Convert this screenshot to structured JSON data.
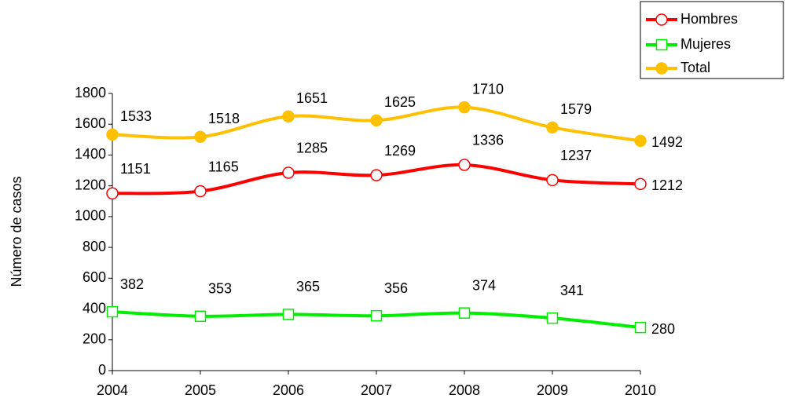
{
  "chart_data": {
    "type": "line",
    "y_label": "Número de casos",
    "categories": [
      "2004",
      "2005",
      "2006",
      "2007",
      "2008",
      "2009",
      "2010"
    ],
    "series": [
      {
        "name": "Hombres",
        "color": "#ff0000",
        "marker": "open-circle",
        "values": [
          1151,
          1165,
          1285,
          1269,
          1336,
          1237,
          1212
        ]
      },
      {
        "name": "Mujeres",
        "color": "#00ee00",
        "marker": "open-square",
        "values": [
          382,
          353,
          365,
          356,
          374,
          341,
          280
        ]
      },
      {
        "name": "Total",
        "color": "#ffc000",
        "marker": "filled-circle",
        "values": [
          1533,
          1518,
          1651,
          1625,
          1710,
          1579,
          1492
        ]
      }
    ],
    "ylim": [
      0,
      1800
    ],
    "yticks": [
      0,
      200,
      400,
      600,
      800,
      1000,
      1200,
      1400,
      1600,
      1800
    ],
    "grid": false,
    "smooth": true,
    "legend": "top-right"
  }
}
